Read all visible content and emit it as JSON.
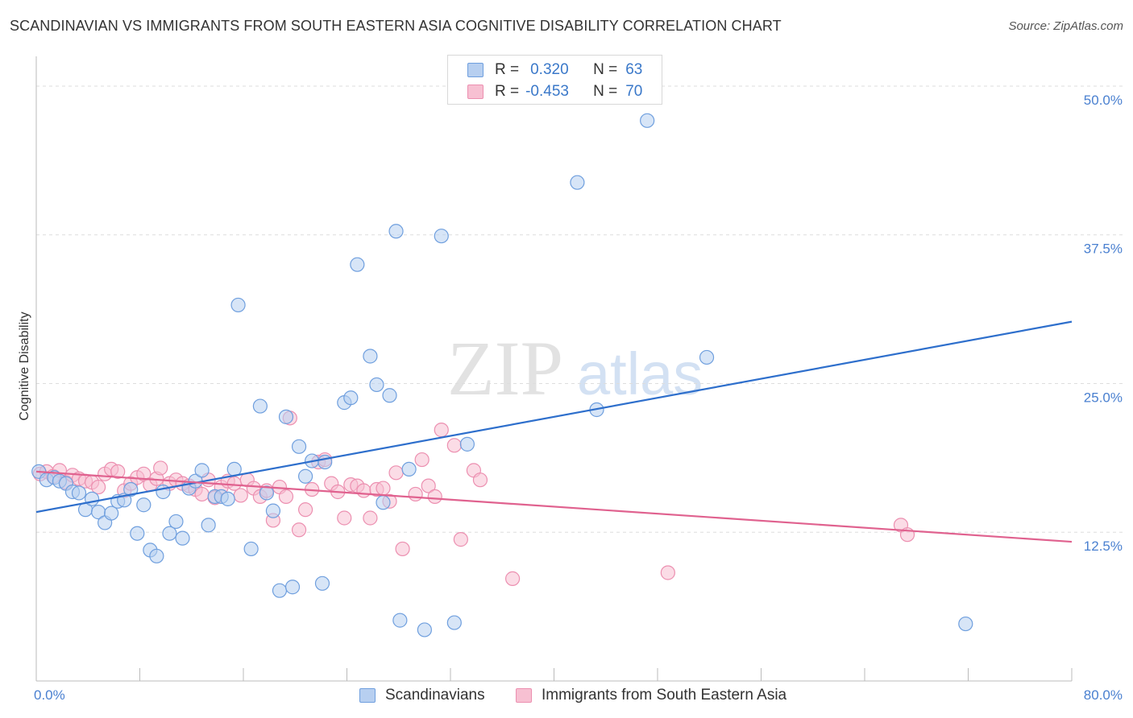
{
  "header": {
    "title": "SCANDINAVIAN VS IMMIGRANTS FROM SOUTH EASTERN ASIA COGNITIVE DISABILITY CORRELATION CHART",
    "source": "Source: ZipAtlas.com"
  },
  "watermark": {
    "zip": "ZIP",
    "atlas": "atlas"
  },
  "legend": {
    "r_label": "R =",
    "n_label": "N =",
    "rows": [
      {
        "r": "0.320",
        "n": "63"
      },
      {
        "r": "-0.453",
        "n": "70"
      }
    ]
  },
  "colors": {
    "blue_fill": "#b7cff0",
    "blue_stroke": "#6f9fde",
    "blue_line": "#2e6fcc",
    "pink_fill": "#f7c0d2",
    "pink_stroke": "#ec8fb0",
    "pink_line": "#e0628f",
    "axis_text": "#4a80d0",
    "grid": "#dddddd"
  },
  "chart_data": {
    "type": "scatter",
    "title": "SCANDINAVIAN VS IMMIGRANTS FROM SOUTH EASTERN ASIA COGNITIVE DISABILITY CORRELATION CHART",
    "xlabel": "",
    "ylabel": "Cognitive Disability",
    "xlim": [
      0,
      80
    ],
    "ylim": [
      0,
      52.5
    ],
    "x_tick_labels": [
      "0.0%",
      "80.0%"
    ],
    "y_ticks": [
      12.5,
      25.0,
      37.5,
      50.0
    ],
    "y_tick_labels": [
      "12.5%",
      "25.0%",
      "37.5%",
      "50.0%"
    ],
    "grid": "horizontal dashed",
    "legend_position": "top-center",
    "series": [
      {
        "name": "Scandinavians",
        "r": 0.32,
        "n": 63,
        "trend": [
          [
            0,
            14.2
          ],
          [
            80,
            30.2
          ]
        ],
        "points": [
          [
            0.2,
            17.6
          ],
          [
            0.8,
            16.9
          ],
          [
            1.4,
            17.1
          ],
          [
            1.8,
            16.8
          ],
          [
            2.3,
            16.6
          ],
          [
            2.8,
            15.9
          ],
          [
            3.3,
            15.8
          ],
          [
            3.8,
            14.4
          ],
          [
            4.3,
            15.3
          ],
          [
            4.8,
            14.2
          ],
          [
            5.3,
            13.3
          ],
          [
            5.8,
            14.1
          ],
          [
            6.3,
            15.1
          ],
          [
            6.8,
            15.2
          ],
          [
            7.3,
            16.1
          ],
          [
            7.8,
            12.4
          ],
          [
            8.3,
            14.8
          ],
          [
            8.8,
            11.0
          ],
          [
            9.3,
            10.5
          ],
          [
            9.8,
            15.9
          ],
          [
            10.3,
            12.4
          ],
          [
            10.8,
            13.4
          ],
          [
            11.3,
            12.0
          ],
          [
            11.8,
            16.2
          ],
          [
            12.3,
            16.8
          ],
          [
            12.8,
            17.7
          ],
          [
            13.3,
            13.1
          ],
          [
            13.8,
            15.5
          ],
          [
            14.3,
            15.5
          ],
          [
            14.8,
            15.3
          ],
          [
            15.3,
            17.8
          ],
          [
            15.6,
            31.6
          ],
          [
            16.6,
            11.1
          ],
          [
            17.3,
            23.1
          ],
          [
            17.8,
            15.8
          ],
          [
            18.3,
            14.3
          ],
          [
            18.8,
            7.6
          ],
          [
            19.3,
            22.2
          ],
          [
            19.8,
            7.9
          ],
          [
            20.3,
            19.7
          ],
          [
            20.8,
            17.2
          ],
          [
            21.3,
            18.5
          ],
          [
            22.1,
            8.2
          ],
          [
            22.3,
            18.4
          ],
          [
            23.8,
            23.4
          ],
          [
            24.3,
            23.8
          ],
          [
            24.8,
            35.0
          ],
          [
            25.8,
            27.3
          ],
          [
            26.3,
            24.9
          ],
          [
            26.8,
            15.0
          ],
          [
            27.3,
            24.0
          ],
          [
            27.8,
            37.8
          ],
          [
            28.1,
            5.1
          ],
          [
            28.8,
            17.8
          ],
          [
            30.0,
            4.3
          ],
          [
            31.3,
            37.4
          ],
          [
            32.3,
            4.9
          ],
          [
            33.3,
            19.9
          ],
          [
            41.8,
            41.9
          ],
          [
            43.3,
            22.8
          ],
          [
            47.2,
            47.1
          ],
          [
            51.8,
            27.2
          ],
          [
            71.8,
            4.8
          ]
        ]
      },
      {
        "name": "Immigrants from South Eastern Asia",
        "r": -0.453,
        "n": 70,
        "trend": [
          [
            0,
            17.6
          ],
          [
            80,
            11.7
          ]
        ],
        "points": [
          [
            0.3,
            17.4
          ],
          [
            0.8,
            17.6
          ],
          [
            1.3,
            17.2
          ],
          [
            1.8,
            17.7
          ],
          [
            2.3,
            16.7
          ],
          [
            2.8,
            17.3
          ],
          [
            3.3,
            17.0
          ],
          [
            3.8,
            16.8
          ],
          [
            4.3,
            16.7
          ],
          [
            4.8,
            16.3
          ],
          [
            5.3,
            17.4
          ],
          [
            5.8,
            17.8
          ],
          [
            6.3,
            17.6
          ],
          [
            6.8,
            16.0
          ],
          [
            7.3,
            16.6
          ],
          [
            7.8,
            17.1
          ],
          [
            8.3,
            17.4
          ],
          [
            8.8,
            16.5
          ],
          [
            9.3,
            17.0
          ],
          [
            9.6,
            17.9
          ],
          [
            10.3,
            16.6
          ],
          [
            10.8,
            16.9
          ],
          [
            11.3,
            16.6
          ],
          [
            11.8,
            16.4
          ],
          [
            12.3,
            16.1
          ],
          [
            12.8,
            15.7
          ],
          [
            13.3,
            16.9
          ],
          [
            13.8,
            15.4
          ],
          [
            14.3,
            16.3
          ],
          [
            14.8,
            16.8
          ],
          [
            15.3,
            16.6
          ],
          [
            15.8,
            15.6
          ],
          [
            16.3,
            16.9
          ],
          [
            16.8,
            16.2
          ],
          [
            17.3,
            15.5
          ],
          [
            17.8,
            16.0
          ],
          [
            18.3,
            13.5
          ],
          [
            18.8,
            16.3
          ],
          [
            19.3,
            15.5
          ],
          [
            19.6,
            22.1
          ],
          [
            20.3,
            12.7
          ],
          [
            20.8,
            14.4
          ],
          [
            21.3,
            16.1
          ],
          [
            21.8,
            18.4
          ],
          [
            22.3,
            18.6
          ],
          [
            22.8,
            16.6
          ],
          [
            23.3,
            15.9
          ],
          [
            23.8,
            13.7
          ],
          [
            24.3,
            16.5
          ],
          [
            24.8,
            16.4
          ],
          [
            25.3,
            16.0
          ],
          [
            25.8,
            13.7
          ],
          [
            26.3,
            16.1
          ],
          [
            26.8,
            16.2
          ],
          [
            27.3,
            15.1
          ],
          [
            27.8,
            17.5
          ],
          [
            28.3,
            11.1
          ],
          [
            29.3,
            15.7
          ],
          [
            29.8,
            18.6
          ],
          [
            30.3,
            16.4
          ],
          [
            30.8,
            15.5
          ],
          [
            31.3,
            21.1
          ],
          [
            32.3,
            19.8
          ],
          [
            32.8,
            11.9
          ],
          [
            33.8,
            17.7
          ],
          [
            34.3,
            16.9
          ],
          [
            36.8,
            8.6
          ],
          [
            48.8,
            9.1
          ],
          [
            66.8,
            13.1
          ],
          [
            67.3,
            12.3
          ]
        ]
      }
    ]
  },
  "bottom_legend": {
    "items": [
      "Scandinavians",
      "Immigrants from South Eastern Asia"
    ]
  }
}
